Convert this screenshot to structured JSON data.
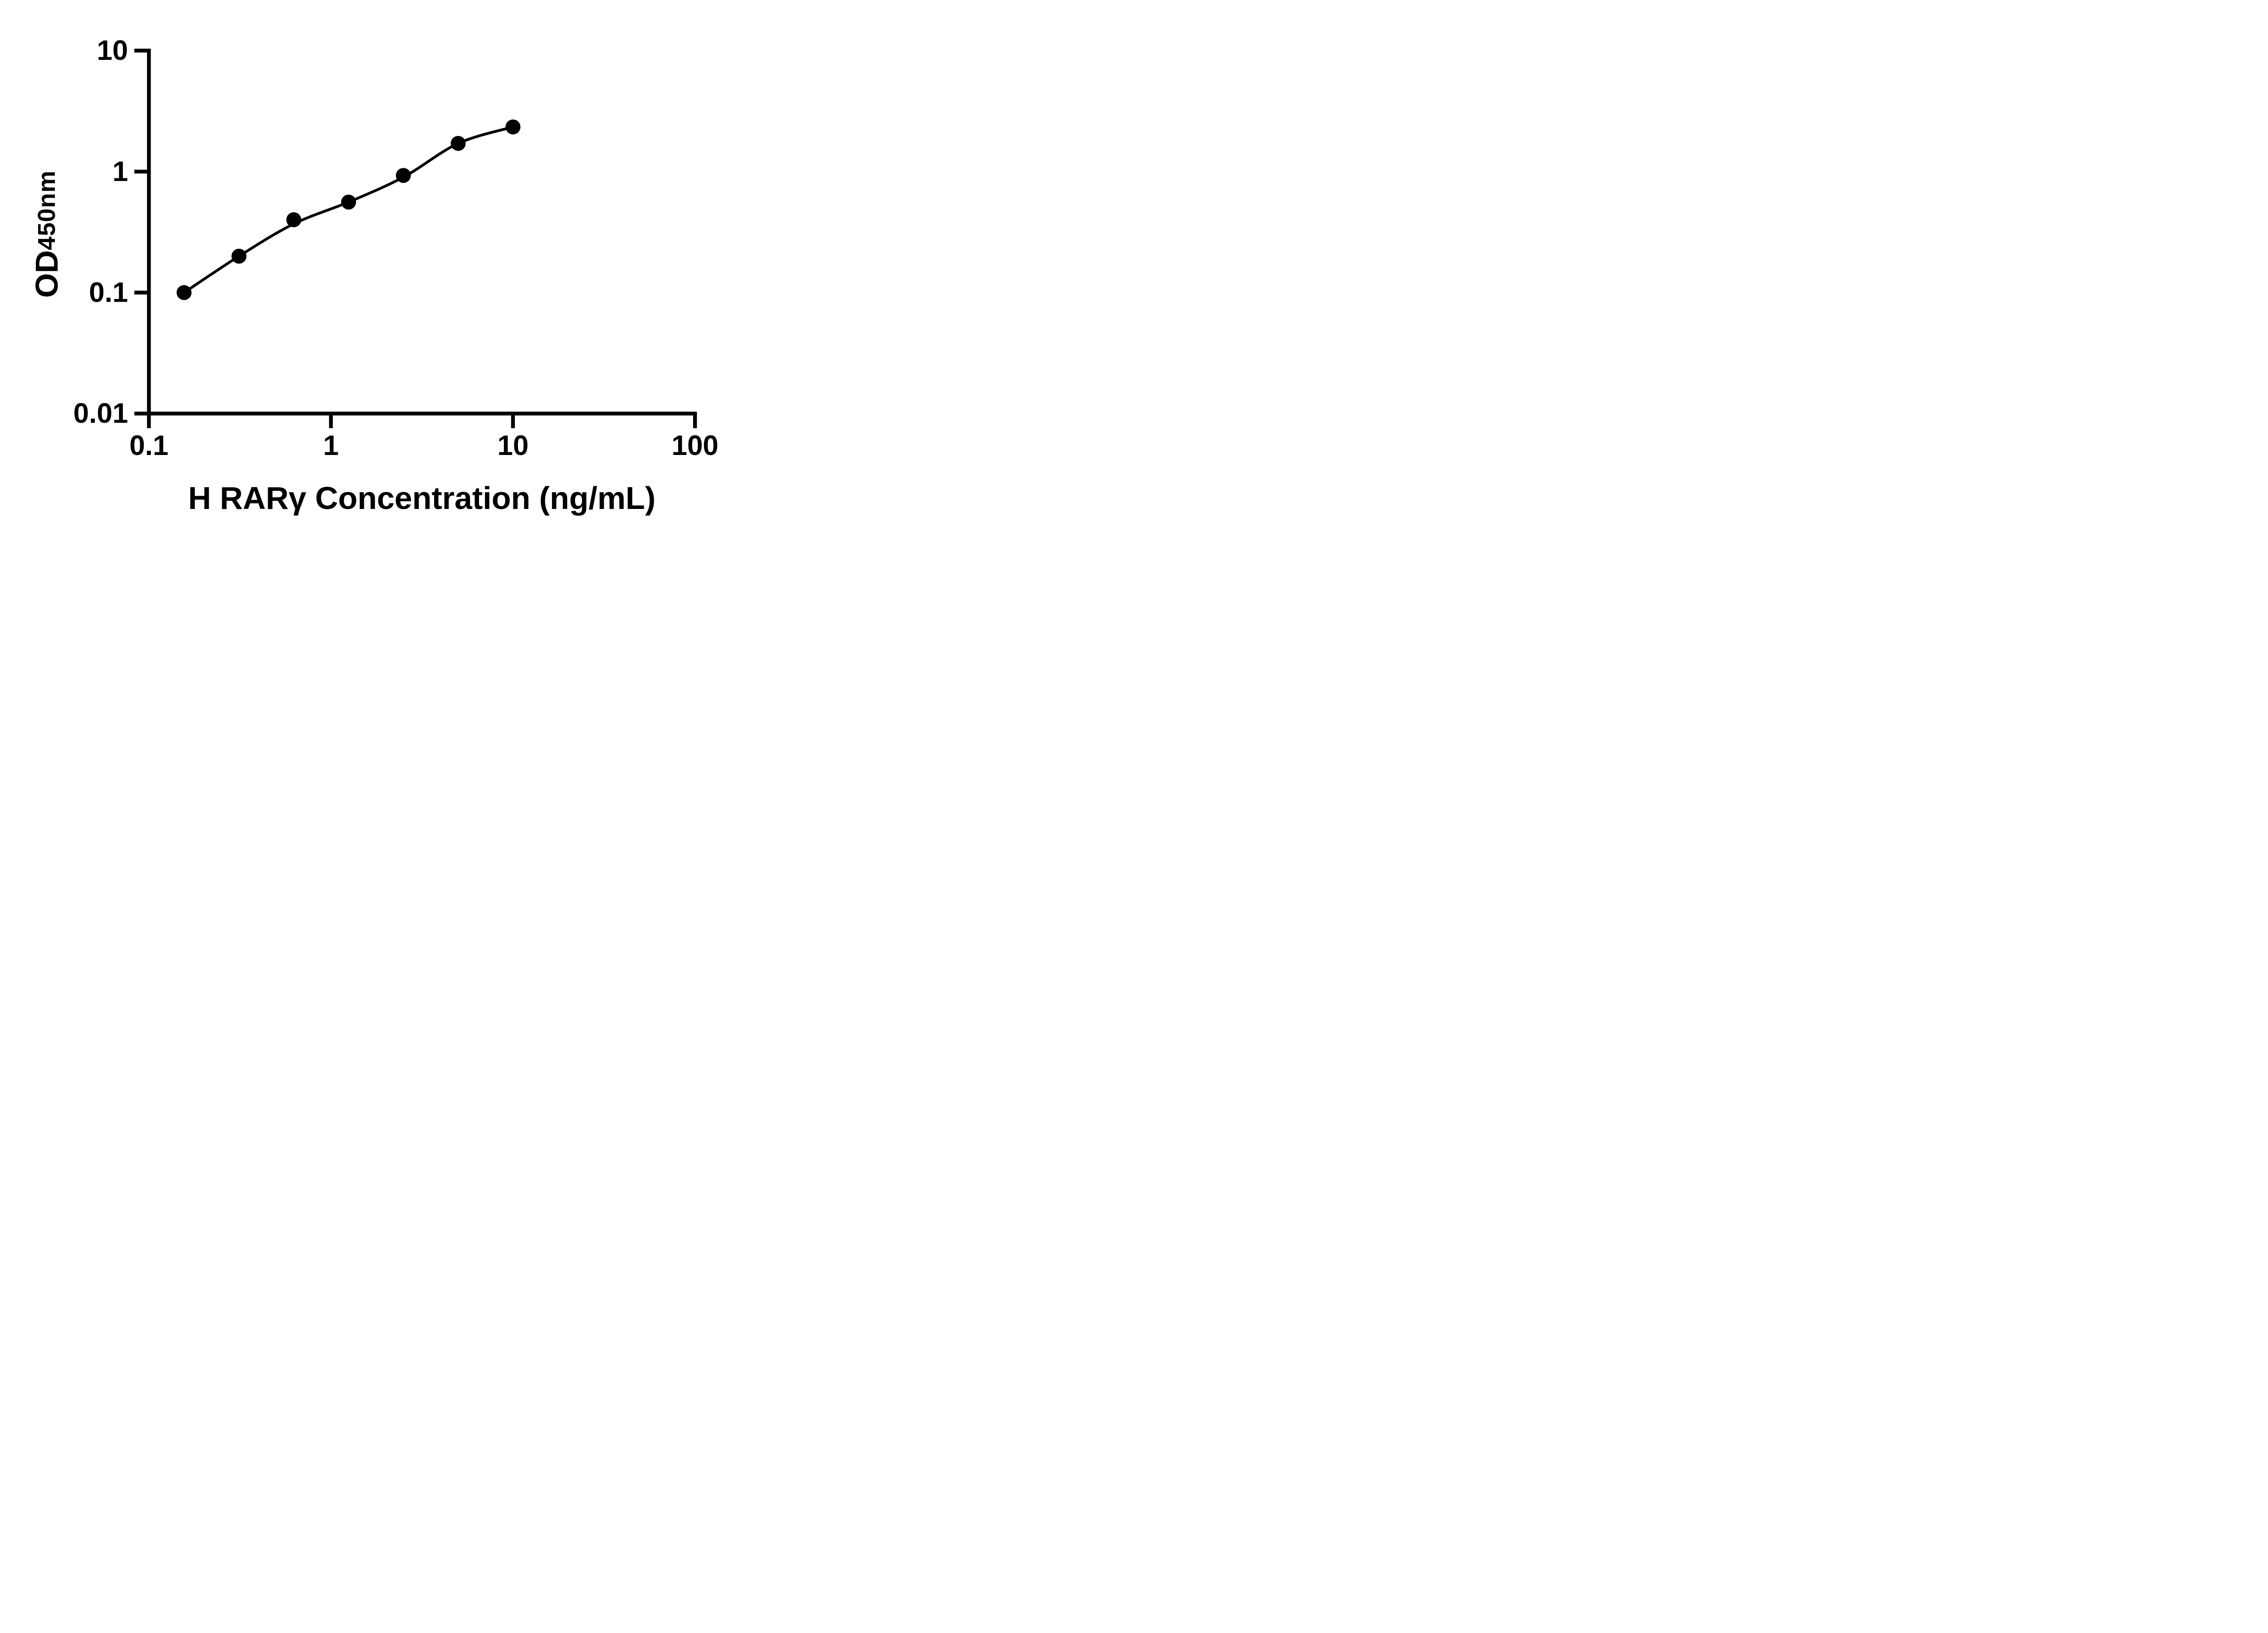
{
  "figure": {
    "background": "#ffffff",
    "ink": "#000000"
  },
  "y_axis": {
    "label_main": "OD",
    "label_sub": "450nm",
    "scale": "log",
    "min": 0.01,
    "max": 10,
    "tick_labels": [
      "0.01",
      "0.1",
      "1",
      "10"
    ]
  },
  "x_axis": {
    "title": "H RARγ Concentration (ng/mL)",
    "scale": "log",
    "min": 0.1,
    "max": 100,
    "tick_labels": [
      "0.1",
      "1",
      "10",
      "100"
    ]
  },
  "chart_data": {
    "type": "scatter",
    "title": "",
    "xlabel": "H RARγ Concentration (ng/mL)",
    "ylabel": "OD450nm",
    "x_scale": "log",
    "y_scale": "log",
    "xlim": [
      0.1,
      100
    ],
    "ylim": [
      0.01,
      10
    ],
    "x_ticks": [
      0.1,
      1,
      10,
      100
    ],
    "y_ticks": [
      0.01,
      0.1,
      1,
      10
    ],
    "grid": false,
    "legend": false,
    "marker": "filled-circle",
    "marker_color": "#000000",
    "line_color": "#000000",
    "x": [
      0.156,
      0.3125,
      0.625,
      1.25,
      2.5,
      5,
      10
    ],
    "y": [
      0.1,
      0.2,
      0.4,
      0.56,
      0.93,
      1.71,
      2.34
    ],
    "trend_y": [
      0.1,
      0.2,
      0.37,
      0.56,
      0.9,
      1.71,
      2.34
    ]
  }
}
